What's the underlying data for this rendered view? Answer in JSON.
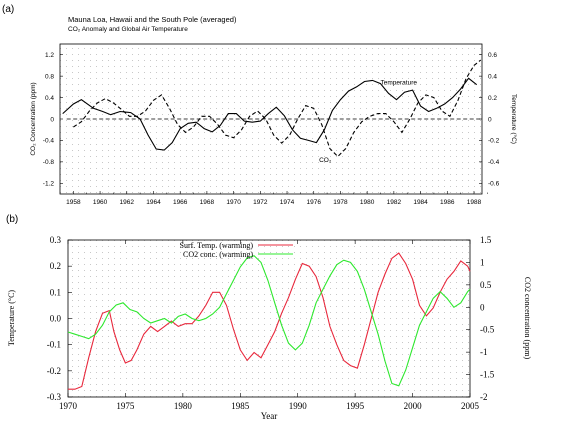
{
  "chart_data": [
    {
      "panel_label": "(a)",
      "type": "line",
      "title": "Mauna Loa, Hawaii and the South Pole (averaged)",
      "subtitle": "CO₂ Anomaly and Global Air Temperature",
      "ylabel_left": "CO₂ Concentration (ppm)",
      "ylabel_right": "Temperature (°C)",
      "xlim": [
        1957,
        1988.6
      ],
      "ylim_left": [
        -1.4,
        1.4
      ],
      "ylim_right": [
        -0.7,
        0.7
      ],
      "x_ticks": [
        "1958",
        "1960",
        "1962",
        "1964",
        "1966",
        "1968",
        "1970",
        "1972",
        "1974",
        "1976",
        "1978",
        "1980",
        "1982",
        "1984",
        "1986",
        "1988"
      ],
      "y_ticks_left": [
        "1.2",
        "0.8",
        "0.4",
        "0",
        "-0.4",
        "-0.8",
        "-1.2"
      ],
      "y_ticks_right": [
        "0.6",
        "0.4",
        "0.2",
        "0",
        "-0.2",
        "-0.4",
        "-0.6"
      ],
      "grid": false,
      "series": [
        {
          "name": "Temperature",
          "axis": "right",
          "style": "solid",
          "x": [
            1957.2,
            1958,
            1958.6,
            1959.5,
            1960.2,
            1960.8,
            1961.5,
            1962.3,
            1963.0,
            1963.6,
            1964.2,
            1964.8,
            1965.4,
            1966.0,
            1966.6,
            1967.2,
            1967.8,
            1968.4,
            1969.0,
            1969.6,
            1970.2,
            1970.8,
            1971.4,
            1972.0,
            1972.6,
            1973.2,
            1973.8,
            1974.4,
            1975.0,
            1975.6,
            1976.2,
            1976.8,
            1977.4,
            1978.0,
            1978.6,
            1979.2,
            1979.8,
            1980.4,
            1981.0,
            1981.6,
            1982.2,
            1982.8,
            1983.4,
            1984.0,
            1984.6,
            1985.2,
            1985.8,
            1986.4,
            1987.0,
            1987.6,
            1988.2
          ],
          "values": [
            0.05,
            0.14,
            0.18,
            0.1,
            0.07,
            0.04,
            0.07,
            0.06,
            0.0,
            -0.15,
            -0.28,
            -0.29,
            -0.22,
            -0.09,
            -0.04,
            -0.03,
            -0.09,
            -0.12,
            -0.06,
            0.05,
            0.05,
            -0.02,
            -0.03,
            -0.02,
            0.05,
            0.11,
            0.03,
            -0.1,
            -0.18,
            -0.2,
            -0.22,
            -0.1,
            0.08,
            0.18,
            0.26,
            0.3,
            0.35,
            0.36,
            0.33,
            0.24,
            0.18,
            0.25,
            0.27,
            0.12,
            0.07,
            0.1,
            0.14,
            0.2,
            0.28,
            0.38,
            0.32
          ]
        },
        {
          "name": "CO₂",
          "axis": "left",
          "style": "dashed",
          "x": [
            1958,
            1958.6,
            1959.2,
            1959.8,
            1960.4,
            1961.0,
            1961.6,
            1962.2,
            1962.8,
            1963.4,
            1964.0,
            1964.6,
            1965.2,
            1965.8,
            1966.4,
            1967.0,
            1967.6,
            1968.2,
            1968.8,
            1969.4,
            1970.0,
            1970.6,
            1971.2,
            1971.8,
            1972.4,
            1973.0,
            1973.6,
            1974.2,
            1974.8,
            1975.4,
            1976.0,
            1976.6,
            1977.2,
            1977.8,
            1978.4,
            1979.0,
            1979.6,
            1980.2,
            1980.8,
            1981.4,
            1982.0,
            1982.6,
            1983.2,
            1983.8,
            1984.4,
            1985.0,
            1985.6,
            1986.2,
            1986.8,
            1987.4,
            1988.0,
            1988.5
          ],
          "values": [
            -0.15,
            -0.05,
            0.15,
            0.3,
            0.38,
            0.3,
            0.18,
            0.05,
            0.05,
            0.15,
            0.35,
            0.45,
            0.2,
            -0.1,
            -0.25,
            -0.15,
            0.05,
            0.05,
            -0.1,
            -0.3,
            -0.35,
            -0.2,
            0.05,
            0.15,
            0.0,
            -0.3,
            -0.45,
            -0.3,
            0.0,
            0.25,
            0.2,
            -0.1,
            -0.55,
            -0.7,
            -0.55,
            -0.25,
            -0.05,
            0.05,
            0.1,
            0.1,
            -0.05,
            -0.25,
            0.0,
            0.3,
            0.45,
            0.4,
            0.15,
            0.05,
            0.35,
            0.75,
            1.0,
            1.1
          ]
        },
        {
          "name": "zero",
          "axis": "left",
          "style": "dashed",
          "x": [
            1957.5,
            1988.5
          ],
          "values": [
            0,
            0
          ]
        }
      ],
      "annotations": [
        {
          "text": "Temperature",
          "x": 1981.0,
          "y": 0.32,
          "axis": "right"
        },
        {
          "text": "CO₂",
          "x": 1976.4,
          "y": -0.4,
          "axis": "right"
        }
      ]
    },
    {
      "panel_label": "(b)",
      "type": "line",
      "xlabel": "Year",
      "ylabel_left": "Temperature (°C)",
      "ylabel_right": "CO2 concentration (ppm)",
      "xlim": [
        1970,
        2005
      ],
      "ylim_left": [
        -0.3,
        0.3
      ],
      "ylim_right": [
        -2,
        1.5
      ],
      "x_ticks": [
        "1970",
        "1975",
        "1980",
        "1985",
        "1990",
        "1995",
        "2000",
        "2005"
      ],
      "y_ticks_left": [
        "0.3",
        "0.2",
        "0.1",
        "0.0",
        "-0.1",
        "-0.2",
        "-0.3"
      ],
      "y_ticks_right": [
        "1.5",
        "1",
        "0.5",
        "0",
        "-0.5",
        "-1",
        "-1.5",
        "-2"
      ],
      "grid": false,
      "legend_position": "top-center",
      "series": [
        {
          "name": "Surf. Temp. (warming)",
          "axis": "left",
          "color": "#e8283c",
          "x": [
            1970.0,
            1970.6,
            1971.2,
            1971.8,
            1972.4,
            1973.0,
            1973.6,
            1974.0,
            1974.5,
            1975.0,
            1975.5,
            1976.0,
            1976.6,
            1977.2,
            1977.8,
            1978.4,
            1979.0,
            1979.6,
            1980.2,
            1980.8,
            1981.4,
            1982.0,
            1982.6,
            1983.2,
            1983.8,
            1984.4,
            1985.0,
            1985.6,
            1986.2,
            1986.8,
            1987.4,
            1988.0,
            1988.6,
            1989.2,
            1989.8,
            1990.4,
            1991.0,
            1991.6,
            1992.2,
            1992.8,
            1993.4,
            1994.0,
            1994.6,
            1995.2,
            1995.8,
            1996.4,
            1997.0,
            1997.6,
            1998.2,
            1998.8,
            1999.4,
            2000.0,
            2000.6,
            2001.2,
            2001.8,
            2002.4,
            2003.0,
            2003.6,
            2004.2,
            2004.8,
            2005.0
          ],
          "values": [
            -0.27,
            -0.27,
            -0.26,
            -0.15,
            -0.05,
            0.02,
            0.03,
            -0.05,
            -0.12,
            -0.17,
            -0.16,
            -0.12,
            -0.06,
            -0.03,
            -0.05,
            -0.03,
            -0.01,
            -0.03,
            -0.02,
            -0.02,
            0.01,
            0.05,
            0.1,
            0.1,
            0.05,
            -0.04,
            -0.12,
            -0.16,
            -0.13,
            -0.15,
            -0.1,
            -0.05,
            0.02,
            0.08,
            0.15,
            0.21,
            0.2,
            0.16,
            0.08,
            -0.03,
            -0.1,
            -0.16,
            -0.18,
            -0.19,
            -0.1,
            0.0,
            0.1,
            0.17,
            0.23,
            0.25,
            0.21,
            0.15,
            0.05,
            0.01,
            0.04,
            0.1,
            0.15,
            0.18,
            0.22,
            0.2,
            0.18
          ]
        },
        {
          "name": "CO2 conc. (warming)",
          "axis": "right",
          "color": "#2ee82e",
          "x": [
            1970.0,
            1970.6,
            1971.2,
            1971.8,
            1972.4,
            1973.0,
            1973.6,
            1974.2,
            1974.8,
            1975.4,
            1976.0,
            1976.6,
            1977.2,
            1977.8,
            1978.4,
            1979.0,
            1979.6,
            1980.2,
            1980.8,
            1981.4,
            1982.0,
            1982.6,
            1983.2,
            1983.8,
            1984.4,
            1985.0,
            1985.6,
            1986.2,
            1986.8,
            1987.4,
            1988.0,
            1988.6,
            1989.2,
            1989.8,
            1990.4,
            1991.0,
            1991.6,
            1992.2,
            1992.8,
            1993.4,
            1994.0,
            1994.6,
            1995.2,
            1995.8,
            1996.4,
            1997.0,
            1997.6,
            1998.2,
            1998.8,
            1999.4,
            2000.0,
            2000.6,
            2001.2,
            2001.8,
            2002.4,
            2003.0,
            2003.6,
            2004.2,
            2004.8,
            2005.0
          ],
          "values": [
            -0.55,
            -0.6,
            -0.65,
            -0.7,
            -0.6,
            -0.4,
            -0.1,
            0.05,
            0.1,
            -0.05,
            -0.1,
            -0.25,
            -0.35,
            -0.3,
            -0.25,
            -0.35,
            -0.2,
            -0.15,
            -0.25,
            -0.3,
            -0.25,
            -0.15,
            0.0,
            0.3,
            0.6,
            0.9,
            1.1,
            1.15,
            1.0,
            0.6,
            0.1,
            -0.4,
            -0.8,
            -0.95,
            -0.8,
            -0.4,
            0.1,
            0.4,
            0.7,
            0.95,
            1.05,
            1.0,
            0.8,
            0.4,
            -0.1,
            -0.6,
            -1.2,
            -1.7,
            -1.75,
            -1.4,
            -0.9,
            -0.4,
            -0.1,
            0.2,
            0.35,
            0.2,
            0.0,
            0.1,
            0.35,
            0.4
          ]
        }
      ]
    }
  ]
}
